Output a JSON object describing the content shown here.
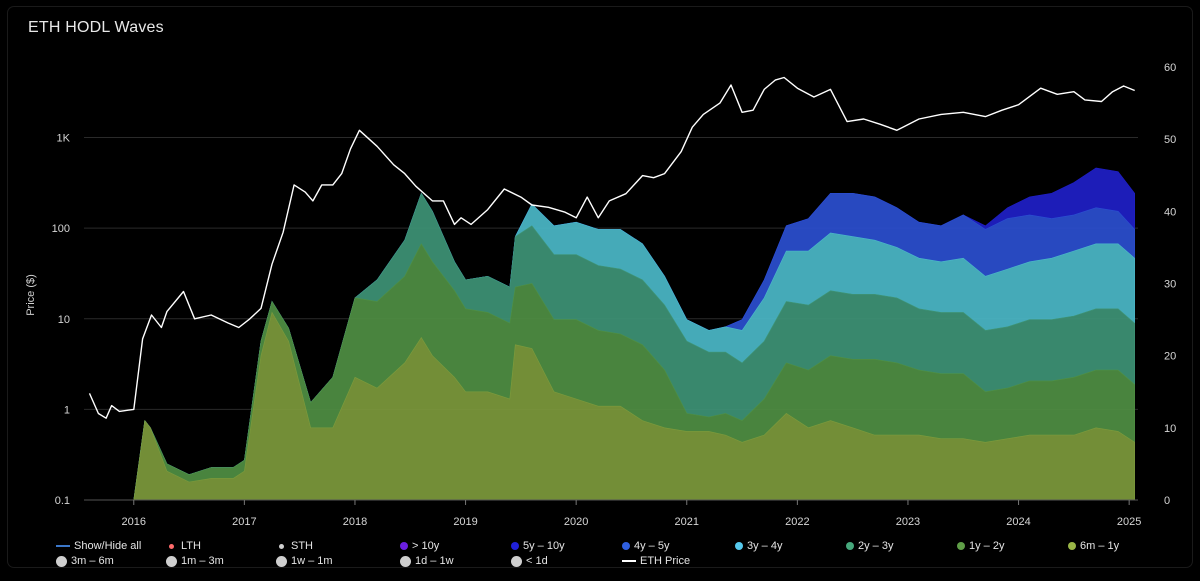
{
  "title": "ETH HODL Waves",
  "chart_data": {
    "type": "area",
    "title": "ETH HODL Waves",
    "xlabel": "",
    "ylabel_left": "Price ($)",
    "ylabel_right": "",
    "y_left_scale": "log",
    "y_left_range": [
      0.1,
      6000
    ],
    "y_left_ticks": [
      {
        "v": 0.1,
        "label": "0.1"
      },
      {
        "v": 1,
        "label": "1"
      },
      {
        "v": 10,
        "label": "10"
      },
      {
        "v": 100,
        "label": "100"
      },
      {
        "v": 1000,
        "label": "1K"
      }
    ],
    "y_right_range": [
      0,
      60
    ],
    "y_right_ticks": [
      0,
      10,
      20,
      30,
      40,
      50,
      60
    ],
    "x_ticks": [
      "2016",
      "2017",
      "2018",
      "2019",
      "2020",
      "2021",
      "2022",
      "2023",
      "2024",
      "2025"
    ],
    "x_range": [
      2015.55,
      2025.08
    ],
    "grid": "horizontal gridlines at left-axis ticks",
    "legend_position": "bottom",
    "x": [
      2015.55,
      2016.0,
      2016.1,
      2016.15,
      2016.3,
      2016.5,
      2016.7,
      2016.9,
      2017.0,
      2017.15,
      2017.25,
      2017.4,
      2017.6,
      2017.8,
      2018.0,
      2018.2,
      2018.45,
      2018.6,
      2018.7,
      2018.9,
      2019.0,
      2019.2,
      2019.4,
      2019.45,
      2019.6,
      2019.8,
      2020.0,
      2020.2,
      2020.4,
      2020.6,
      2020.8,
      2021.0,
      2021.2,
      2021.35,
      2021.5,
      2021.7,
      2021.9,
      2022.1,
      2022.3,
      2022.5,
      2022.7,
      2022.9,
      2023.1,
      2023.3,
      2023.5,
      2023.7,
      2023.9,
      2024.1,
      2024.3,
      2024.5,
      2024.7,
      2024.9,
      2025.05
    ],
    "series": [
      {
        "name": "5y – 10y",
        "color": "#1f1fc8",
        "values": [
          0,
          0,
          0,
          0,
          0,
          0,
          0,
          0,
          0,
          0,
          0,
          0,
          0,
          0,
          0,
          0,
          0,
          0,
          0,
          0,
          0,
          0,
          0,
          0,
          0,
          0,
          0,
          0,
          0,
          0,
          0,
          0,
          0,
          0,
          0,
          0,
          0,
          0,
          0,
          0,
          0,
          0,
          0,
          0,
          0,
          0.5,
          1.5,
          2.5,
          3.5,
          4.5,
          5.5,
          5.5,
          5
        ]
      },
      {
        "name": "4y – 5y",
        "color": "#2b4fd0",
        "values": [
          0,
          0,
          0,
          0,
          0,
          0,
          0,
          0,
          0,
          0,
          0,
          0,
          0,
          0,
          0,
          0,
          0,
          0,
          0,
          0,
          0,
          0,
          0,
          0,
          0,
          0,
          0,
          0,
          0,
          0,
          0,
          0,
          0,
          0,
          1.5,
          2.5,
          3.5,
          4.5,
          5.5,
          6,
          6,
          5.5,
          5,
          5,
          6,
          6.5,
          7,
          6.5,
          5.5,
          5,
          5,
          4.5,
          4
        ]
      },
      {
        "name": "3y – 4y",
        "color": "#4bb8c8",
        "values": [
          0,
          0,
          0,
          0,
          0,
          0,
          0,
          0,
          0,
          0,
          0,
          0,
          0,
          0,
          0,
          0,
          0,
          0,
          0,
          0,
          0,
          0,
          0,
          0,
          3,
          4,
          4.5,
          5,
          5.5,
          5,
          4,
          3,
          3,
          3.5,
          4.5,
          6,
          7,
          7.5,
          8,
          8,
          7.5,
          7,
          7,
          7,
          7.5,
          7.5,
          8,
          8,
          8.5,
          9,
          9,
          9,
          9
        ]
      },
      {
        "name": "2y – 3y",
        "color": "#3e9476",
        "values": [
          0,
          0,
          0,
          0,
          0,
          0,
          0,
          0,
          0,
          0,
          0,
          0,
          0,
          0,
          0,
          3,
          5,
          7,
          7,
          4,
          4,
          5,
          5,
          7,
          8,
          9,
          9,
          9,
          9,
          9,
          9,
          10,
          9,
          8.5,
          8,
          8,
          8.5,
          9,
          9,
          9,
          9,
          9,
          8.5,
          8.5,
          8.5,
          8.5,
          8.5,
          8.5,
          8.5,
          8.5,
          8.5,
          8.5,
          8.5
        ]
      },
      {
        "name": "1y – 2y",
        "color": "#4f8f43",
        "values": [
          0,
          0,
          0,
          0,
          1,
          1,
          1.5,
          1.5,
          1.5,
          2,
          1.5,
          1.8,
          3.5,
          7,
          11,
          12,
          12,
          13,
          13,
          12,
          11.5,
          11,
          10.5,
          8,
          9,
          10,
          11,
          10.5,
          10,
          10.5,
          8,
          2.5,
          2,
          3,
          3,
          5,
          7,
          8,
          9,
          9.5,
          10.5,
          10,
          9,
          9,
          9,
          7,
          7,
          7.5,
          7.5,
          8,
          8,
          8.5,
          8
        ]
      },
      {
        "name": "6m – 1y",
        "color": "#7d9a3c",
        "values": [
          0,
          0,
          11,
          10,
          4,
          2.5,
          3,
          3,
          4,
          20,
          26,
          22,
          10,
          10,
          17,
          15.5,
          19,
          22.5,
          20,
          17,
          15,
          15,
          14,
          21.5,
          21,
          15,
          14,
          13,
          13,
          11,
          10,
          9.5,
          9.5,
          9,
          8,
          9,
          12,
          10,
          11,
          10,
          9,
          9,
          9,
          8.5,
          8.5,
          8,
          8.5,
          9,
          9,
          9,
          10,
          9.5,
          8
        ]
      }
    ],
    "eth_price": {
      "name": "ETH Price",
      "color": "#ffffff",
      "x": [
        2015.6,
        2015.68,
        2015.75,
        2015.8,
        2015.87,
        2016.0,
        2016.08,
        2016.16,
        2016.25,
        2016.3,
        2016.45,
        2016.55,
        2016.7,
        2016.85,
        2016.95,
        2017.05,
        2017.15,
        2017.25,
        2017.35,
        2017.45,
        2017.55,
        2017.62,
        2017.7,
        2017.8,
        2017.88,
        2017.96,
        2018.04,
        2018.2,
        2018.35,
        2018.45,
        2018.55,
        2018.7,
        2018.8,
        2018.9,
        2018.96,
        2019.05,
        2019.2,
        2019.35,
        2019.5,
        2019.6,
        2019.75,
        2019.9,
        2020.0,
        2020.1,
        2020.2,
        2020.3,
        2020.45,
        2020.6,
        2020.7,
        2020.8,
        2020.95,
        2021.05,
        2021.15,
        2021.3,
        2021.4,
        2021.5,
        2021.6,
        2021.7,
        2021.8,
        2021.88,
        2022.0,
        2022.15,
        2022.3,
        2022.45,
        2022.6,
        2022.75,
        2022.9,
        2023.1,
        2023.3,
        2023.5,
        2023.7,
        2023.85,
        2024.0,
        2024.2,
        2024.35,
        2024.5,
        2024.6,
        2024.75,
        2024.85,
        2024.95,
        2025.05
      ],
      "values": [
        1.5,
        0.9,
        0.8,
        1.1,
        0.95,
        1.0,
        6,
        11,
        8,
        12,
        20,
        10,
        11,
        9,
        8,
        10,
        13,
        40,
        90,
        300,
        250,
        200,
        300,
        300,
        400,
        750,
        1200,
        800,
        500,
        400,
        290,
        200,
        200,
        110,
        130,
        110,
        160,
        270,
        220,
        180,
        170,
        150,
        130,
        220,
        130,
        200,
        240,
        380,
        360,
        400,
        700,
        1300,
        1800,
        2400,
        3800,
        1900,
        2000,
        3400,
        4300,
        4600,
        3500,
        2800,
        3400,
        1500,
        1600,
        1400,
        1200,
        1600,
        1800,
        1900,
        1700,
        2000,
        2300,
        3500,
        3000,
        3200,
        2600,
        2500,
        3200,
        3700,
        3300
      ]
    }
  },
  "legend": {
    "row1": [
      {
        "label": "Show/Hide all",
        "symbol": "line",
        "color": "#3b77c9"
      },
      {
        "label": "LTH",
        "symbol": "small",
        "color": "#ff6b6b"
      },
      {
        "label": "STH",
        "symbol": "small",
        "color": "#cfcfcf"
      },
      {
        "label": "> 10y",
        "symbol": "dot",
        "color": "#6a1ee0"
      },
      {
        "label": "5y – 10y",
        "symbol": "dot",
        "color": "#2020d8"
      },
      {
        "label": "4y – 5y",
        "symbol": "dot",
        "color": "#2f5fe0"
      },
      {
        "label": "3y – 4y",
        "symbol": "dot",
        "color": "#55c8ec"
      },
      {
        "label": "2y – 3y",
        "symbol": "dot",
        "color": "#46a87c"
      },
      {
        "label": "1y – 2y",
        "symbol": "dot",
        "color": "#5f9e47"
      },
      {
        "label": "6m – 1y",
        "symbol": "dot",
        "color": "#9ab647"
      }
    ],
    "row2": [
      {
        "label": "3m – 6m",
        "symbol": "big",
        "color": "#cfcfcf"
      },
      {
        "label": "1m – 3m",
        "symbol": "big",
        "color": "#cfcfcf"
      },
      {
        "label": "1w – 1m",
        "symbol": "big",
        "color": "#cfcfcf"
      },
      {
        "label": "1d – 1w",
        "symbol": "big",
        "color": "#cfcfcf"
      },
      {
        "label": "< 1d",
        "symbol": "big",
        "color": "#cfcfcf"
      },
      {
        "label": "ETH Price",
        "symbol": "line",
        "color": "#ffffff"
      }
    ]
  }
}
